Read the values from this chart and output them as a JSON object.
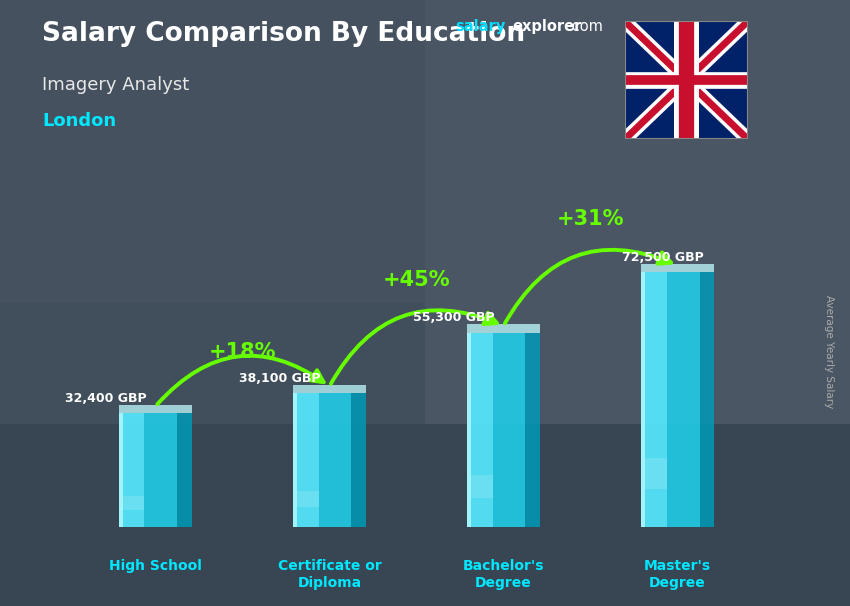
{
  "title": "Salary Comparison By Education",
  "subtitle": "Imagery Analyst",
  "location": "London",
  "categories": [
    "High School",
    "Certificate or\nDiploma",
    "Bachelor's\nDegree",
    "Master's\nDegree"
  ],
  "values": [
    32400,
    38100,
    55300,
    72500
  ],
  "value_labels": [
    "32,400 GBP",
    "38,100 GBP",
    "55,300 GBP",
    "72,500 GBP"
  ],
  "pct_labels": [
    "+18%",
    "+45%",
    "+31%"
  ],
  "bar_color_main": "#00cfea",
  "bar_color_light": "#50e8ff",
  "bar_color_dark": "#0099bb",
  "bar_highlight": "#90f4ff",
  "bar_shadow": "#006688",
  "bg_color": "#5a6a7a",
  "overlay_color": "#3a4a5a",
  "title_color": "#ffffff",
  "subtitle_color": "#e8e8e8",
  "location_color": "#00e8ff",
  "value_color": "#ffffff",
  "pct_color": "#66ff00",
  "pct_color2": "#88ee00",
  "xlabel_color": "#00e8ff",
  "site_salary_color": "#00ddff",
  "site_explorer_color": "#ffffff",
  "ylabel_text": "Average Yearly Salary",
  "ylabel_color": "#aaaaaa",
  "arrow_color": "#66ff00",
  "flag_blue": "#012169",
  "flag_red": "#C8102E"
}
